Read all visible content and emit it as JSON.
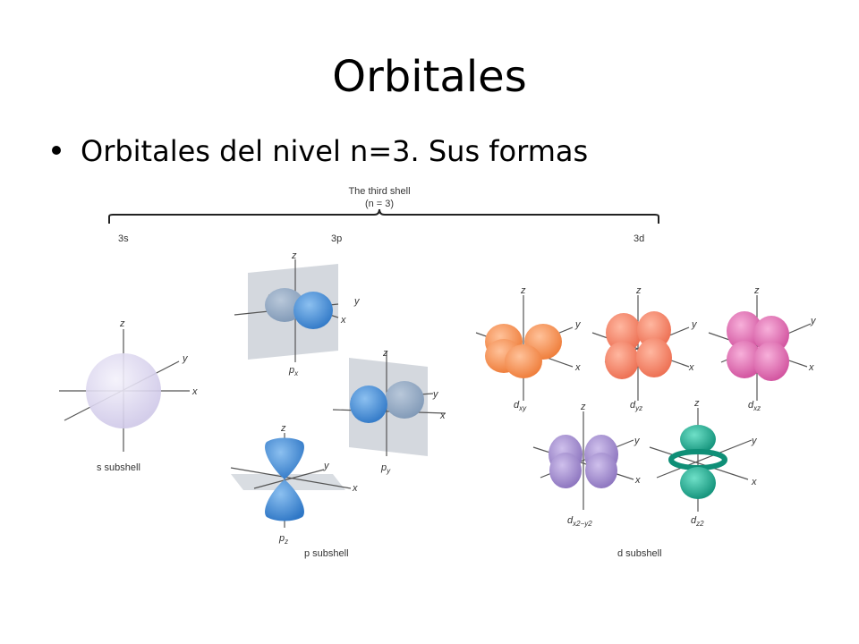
{
  "slide": {
    "title": "Orbitales",
    "bullet": "Orbitales del nivel n=3. Sus formas"
  },
  "figure": {
    "shell_title": "The third shell",
    "shell_n": "(n = 3)",
    "subshells": {
      "s": {
        "head": "3s",
        "caption": "s subshell",
        "orbitals": [
          "s"
        ]
      },
      "p": {
        "head": "3p",
        "caption": "p subshell",
        "orbitals": [
          "px",
          "py",
          "pz"
        ]
      },
      "d": {
        "head": "3d",
        "caption": "d subshell",
        "orbitals": [
          "dxy",
          "dyz",
          "dxz",
          "dx2-y2",
          "dz2"
        ]
      }
    },
    "axis_labels": {
      "x": "x",
      "y": "y",
      "z": "z"
    },
    "colors": {
      "s": "#d9d4ee",
      "p": "#4a8fd6",
      "p_shadow": "#8fa8c4",
      "plane": "#c9ced6",
      "dxy": "#f28a4e",
      "dyz": "#f27e63",
      "dxz": "#d968ad",
      "dx2y2": "#9b86c9",
      "dz2": "#17a38a"
    }
  }
}
